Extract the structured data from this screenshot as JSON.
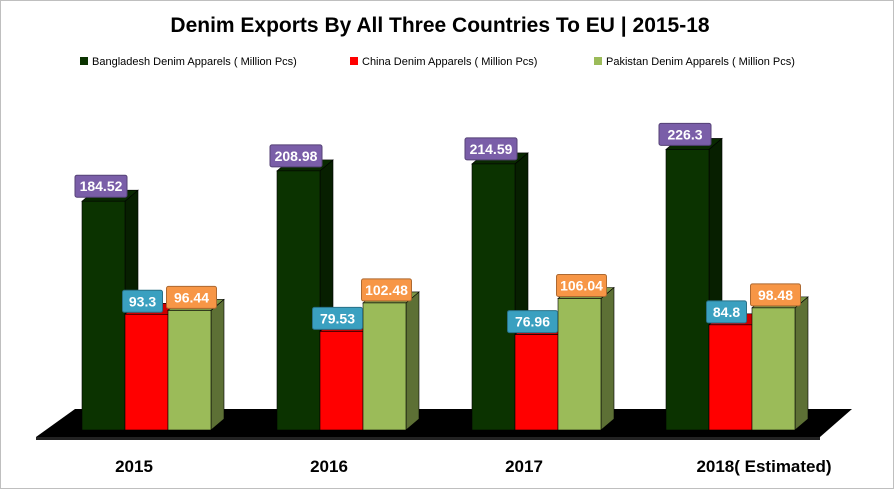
{
  "chart_data": {
    "type": "bar",
    "title": "Denim Exports By All Three Countries  To EU | 2015-18",
    "categories": [
      "2015",
      "2016",
      "2017",
      "2018( Estimated)"
    ],
    "series": [
      {
        "name": "Bangladesh  Denim Apparels ( Million Pcs)",
        "values": [
          184.52,
          208.98,
          214.59,
          226.3
        ],
        "color": "#0b3300",
        "label_bg": "#7a5ea8",
        "label_fg": "#ffffff"
      },
      {
        "name": "China  Denim Apparels ( Million Pcs)",
        "values": [
          93.3,
          79.53,
          76.96,
          84.8
        ],
        "color": "#ff0000",
        "label_bg": "#3aa0c0",
        "label_fg": "#ffffff"
      },
      {
        "name": "Pakistan  Denim Apparels ( Million Pcs)",
        "values": [
          96.44,
          102.48,
          106.04,
          98.48
        ],
        "color": "#9bbb59",
        "label_bg": "#f79646",
        "label_fg": "#ffffff"
      }
    ],
    "value_labels": [
      [
        "184.52",
        "208.98",
        "214.59",
        "226.3"
      ],
      [
        "93.3",
        "79.53",
        "76.96",
        "84.8"
      ],
      [
        "96.44",
        "102.48",
        "106.04",
        "98.48"
      ]
    ],
    "ylim": [
      0,
      300
    ],
    "grid": false,
    "legend_position": "top",
    "style": "3d-column"
  }
}
